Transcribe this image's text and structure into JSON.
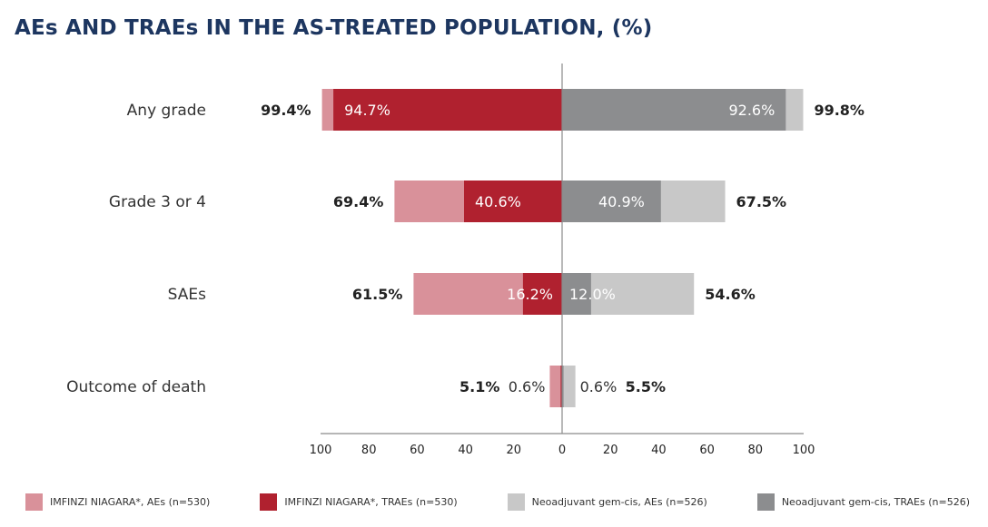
{
  "title": "AEs AND TRAEs IN THE AS-TREATED POPULATION, (%)",
  "legend": [
    {
      "label": "IMFINZI NIAGARA*, AEs (n=530)",
      "color": "#d9919a"
    },
    {
      "label": "IMFINZI NIAGARA*, TRAEs (n=530)",
      "color": "#b0212f"
    },
    {
      "label": "Neoadjuvant gem-cis, AEs (n=526)",
      "color": "#c8c8c8"
    },
    {
      "label": "Neoadjuvant gem-cis, TRAEs (n=526)",
      "color": "#8c8d8f"
    }
  ],
  "chart_data": {
    "type": "bar",
    "orientation": "horizontal-butterfly",
    "title": "AEs AND TRAEs IN THE AS-TREATED POPULATION, (%)",
    "categories": [
      "Any grade",
      "Grade 3 or 4",
      "SAEs",
      "Outcome of death"
    ],
    "left": {
      "series": [
        {
          "name": "IMFINZI NIAGARA*, AEs (n=530)",
          "values": [
            99.4,
            69.4,
            61.5,
            5.1
          ],
          "labels": [
            "99.4%",
            "69.4%",
            "61.5%",
            "5.1%"
          ],
          "color": "#d9919a"
        },
        {
          "name": "IMFINZI NIAGARA*, TRAEs (n=530)",
          "values": [
            94.7,
            40.6,
            16.2,
            0.6
          ],
          "labels": [
            "94.7%",
            "40.6%",
            "16.2%",
            "0.6%"
          ],
          "color": "#b0212f"
        }
      ]
    },
    "right": {
      "series": [
        {
          "name": "Neoadjuvant gem-cis, AEs (n=526)",
          "values": [
            99.8,
            67.5,
            54.6,
            5.5
          ],
          "labels": [
            "99.8%",
            "67.5%",
            "54.6%",
            "5.5%"
          ],
          "color": "#c8c8c8"
        },
        {
          "name": "Neoadjuvant gem-cis, TRAEs (n=526)",
          "values": [
            92.6,
            40.9,
            12.0,
            0.6
          ],
          "labels": [
            "92.6%",
            "40.9%",
            "12.0%",
            "0.6%"
          ],
          "color": "#8c8d8f"
        }
      ]
    },
    "x_ticks_left": [
      "100",
      "80",
      "60",
      "40",
      "20",
      "0"
    ],
    "x_ticks_right": [
      "20",
      "40",
      "60",
      "80",
      "100"
    ],
    "xlim": [
      0,
      100
    ],
    "grid": false,
    "legend_position": "bottom"
  }
}
